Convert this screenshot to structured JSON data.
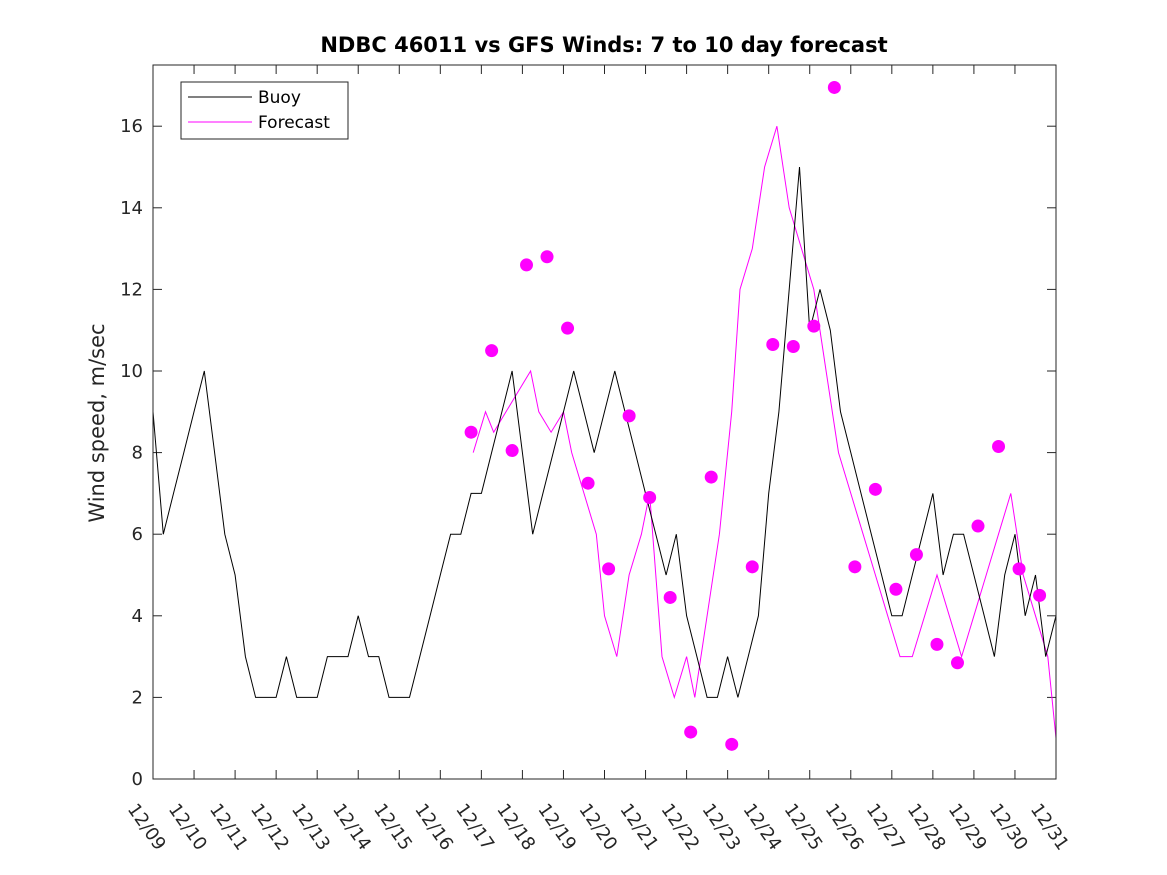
{
  "chart_data": {
    "type": "line",
    "title": "NDBC 46011 vs GFS Winds: 7 to 10 day forecast",
    "xlabel": "",
    "ylabel": "Wind speed, m/sec",
    "xlim": [
      0,
      22
    ],
    "ylim": [
      0,
      17.5
    ],
    "x_tick_labels": [
      "12/09",
      "12/10",
      "12/11",
      "12/12",
      "12/13",
      "12/14",
      "12/15",
      "12/16",
      "12/17",
      "12/18",
      "12/19",
      "12/20",
      "12/21",
      "12/22",
      "12/23",
      "12/24",
      "12/25",
      "12/26",
      "12/27",
      "12/28",
      "12/29",
      "12/30",
      "12/31"
    ],
    "y_ticks": [
      0,
      2,
      4,
      6,
      8,
      10,
      12,
      14,
      16
    ],
    "legend": {
      "location": "top-left",
      "entries": [
        "Buoy",
        "Forecast"
      ]
    },
    "colors": {
      "buoy": "#000000",
      "forecast": "#ff00ff"
    },
    "series": [
      {
        "name": "Buoy",
        "x": [
          0,
          0.25,
          0.5,
          0.75,
          1,
          1.25,
          1.5,
          1.75,
          2,
          2.25,
          2.5,
          2.75,
          3,
          3.25,
          3.5,
          3.75,
          4,
          4.25,
          4.5,
          4.75,
          5,
          5.25,
          5.5,
          5.75,
          6,
          6.25,
          6.5,
          6.75,
          7,
          7.25,
          7.5,
          7.75,
          8,
          8.25,
          8.5,
          8.75,
          9,
          9.25,
          9.5,
          9.75,
          10,
          10.25,
          10.5,
          10.75,
          11,
          11.25,
          11.5,
          11.75,
          12,
          12.25,
          12.5,
          12.75,
          13,
          13.25,
          13.5,
          13.75,
          14,
          14.25,
          14.5,
          14.75,
          15,
          15.25,
          15.5,
          15.75,
          16,
          16.25,
          16.5,
          16.75,
          17,
          17.25,
          17.5,
          17.75,
          18,
          18.25,
          18.5,
          18.75,
          19,
          19.25,
          19.5,
          19.75,
          20,
          20.25,
          20.5,
          20.75,
          21,
          21.25,
          21.5,
          21.75,
          22
        ],
        "values": [
          9,
          6,
          7,
          8,
          9,
          10,
          8,
          6,
          5,
          3,
          2,
          2,
          2,
          3,
          2,
          2,
          2,
          3,
          3,
          3,
          4,
          3,
          3,
          2,
          2,
          2,
          3,
          4,
          5,
          6,
          6,
          7,
          7,
          8,
          9,
          10,
          8,
          6,
          7,
          8,
          9,
          10,
          9,
          8,
          9,
          10,
          9,
          8,
          7,
          6,
          5,
          6,
          4,
          3,
          2,
          2,
          3,
          2,
          3,
          4,
          7,
          9,
          12,
          15,
          11,
          12,
          11,
          9,
          8,
          7,
          6,
          5,
          4,
          4,
          5,
          6,
          7,
          5,
          6,
          6,
          5,
          4,
          3,
          5,
          6,
          4,
          5,
          3,
          4
        ]
      },
      {
        "name": "Forecast",
        "x": [
          7.8,
          8.1,
          8.3,
          8.6,
          8.9,
          9.2,
          9.4,
          9.7,
          10,
          10.2,
          10.5,
          10.8,
          11,
          11.3,
          11.6,
          11.9,
          12.1,
          12.4,
          12.7,
          13,
          13.2,
          13.5,
          13.8,
          14.1,
          14.3,
          14.6,
          14.9,
          15.2,
          15.5,
          15.8,
          16.1,
          16.4,
          16.7,
          17,
          17.3,
          17.6,
          17.9,
          18.2,
          18.5,
          18.8,
          19.1,
          19.4,
          19.7,
          20,
          20.3,
          20.6,
          20.9,
          21.2,
          21.5,
          21.8,
          22
        ],
        "values": [
          8,
          9,
          8.5,
          9,
          9.5,
          10,
          9,
          8.5,
          9,
          8,
          7,
          6,
          4,
          3,
          5,
          6,
          7,
          3,
          2,
          3,
          2,
          4,
          6,
          9,
          12,
          13,
          15,
          16,
          14,
          13,
          12,
          10,
          8,
          7,
          6,
          5,
          4,
          3,
          3,
          4,
          5,
          4,
          3,
          4,
          5,
          6,
          7,
          5,
          4,
          3,
          1
        ]
      }
    ],
    "markers": {
      "x": [
        7.75,
        8.25,
        8.75,
        9.1,
        9.6,
        10.1,
        10.6,
        11.1,
        11.6,
        12.1,
        12.6,
        13.1,
        13.6,
        14.1,
        14.6,
        15.1,
        15.6,
        16.1,
        16.6,
        17.1,
        17.6,
        18.1,
        18.6,
        19.1,
        19.6,
        20.1,
        20.6,
        21.1,
        21.6
      ],
      "values": [
        8.5,
        10.5,
        8.05,
        12.6,
        12.8,
        11.05,
        7.25,
        5.15,
        8.9,
        6.9,
        4.45,
        1.15,
        7.4,
        0.85,
        5.2,
        10.65,
        10.6,
        11.1,
        16.95,
        5.2,
        7.1,
        4.65,
        5.5,
        3.3,
        2.85,
        6.2,
        8.15,
        5.15,
        4.5
      ]
    }
  }
}
